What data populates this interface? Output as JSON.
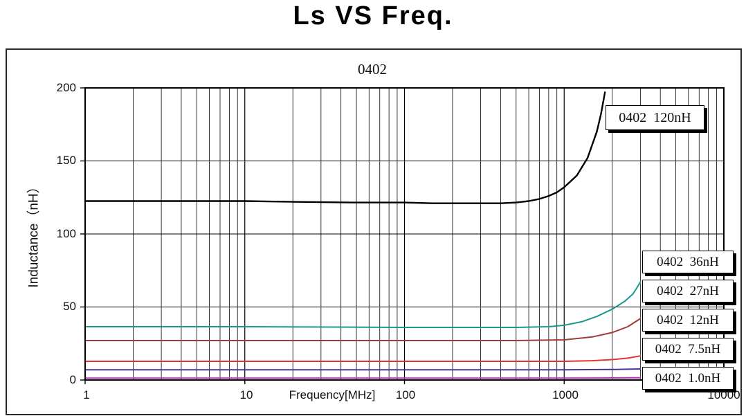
{
  "title": "Ls VS Freq.",
  "chart_data": {
    "type": "line",
    "title": "Ls VS Freq.",
    "subtitle": "0402",
    "xlabel": "Frequency[MHz]",
    "ylabel": "Inductance（nH）",
    "x_scale": "log",
    "xlim": [
      1,
      10000
    ],
    "ylim": [
      0,
      200
    ],
    "x_ticks": [
      1,
      10,
      100,
      1000,
      10000
    ],
    "y_ticks": [
      0,
      50,
      100,
      150,
      200
    ],
    "grid": true,
    "legend_position": "right",
    "series": [
      {
        "name": "0402 120nH",
        "color": "#000000",
        "width": 2.4,
        "points": [
          [
            1,
            122.5
          ],
          [
            2,
            122.5
          ],
          [
            5,
            122.5
          ],
          [
            10,
            122.5
          ],
          [
            20,
            122
          ],
          [
            50,
            121.5
          ],
          [
            100,
            121.5
          ],
          [
            150,
            121
          ],
          [
            200,
            121
          ],
          [
            300,
            121
          ],
          [
            400,
            121
          ],
          [
            500,
            121.5
          ],
          [
            600,
            122.5
          ],
          [
            700,
            124
          ],
          [
            800,
            126
          ],
          [
            900,
            128.5
          ],
          [
            1000,
            132
          ],
          [
            1200,
            140
          ],
          [
            1400,
            152
          ],
          [
            1600,
            170
          ],
          [
            1700,
            182
          ],
          [
            1800,
            197
          ]
        ]
      },
      {
        "name": "0402 36nH",
        "color": "#1a9890",
        "width": 2,
        "points": [
          [
            1,
            36.5
          ],
          [
            10,
            36.5
          ],
          [
            100,
            36
          ],
          [
            300,
            36
          ],
          [
            500,
            36
          ],
          [
            800,
            36.5
          ],
          [
            1000,
            37.5
          ],
          [
            1300,
            40
          ],
          [
            1600,
            43.5
          ],
          [
            2000,
            48.5
          ],
          [
            2400,
            54
          ],
          [
            2700,
            59
          ],
          [
            3000,
            67
          ]
        ]
      },
      {
        "name": "0402 27nH",
        "color": "#a03a36",
        "width": 2,
        "points": [
          [
            1,
            27
          ],
          [
            10,
            27
          ],
          [
            100,
            27
          ],
          [
            500,
            27
          ],
          [
            1000,
            27.5
          ],
          [
            1500,
            29.5
          ],
          [
            2000,
            32.5
          ],
          [
            2500,
            36.5
          ],
          [
            3000,
            42
          ]
        ]
      },
      {
        "name": "0402 12nH",
        "color": "#e63232",
        "width": 2,
        "points": [
          [
            1,
            12.8
          ],
          [
            10,
            12.8
          ],
          [
            100,
            12.8
          ],
          [
            1000,
            12.8
          ],
          [
            1500,
            13.2
          ],
          [
            2000,
            14
          ],
          [
            2500,
            15
          ],
          [
            3000,
            16.5
          ]
        ]
      },
      {
        "name": "0402 7.5nH",
        "color": "#4333a0",
        "width": 2,
        "points": [
          [
            1,
            7
          ],
          [
            10,
            7
          ],
          [
            100,
            7
          ],
          [
            1000,
            7
          ],
          [
            2000,
            7.2
          ],
          [
            3000,
            7.6
          ]
        ]
      },
      {
        "name": "0402 1.0nH",
        "color": "#c428c4",
        "width": 2,
        "points": [
          [
            1,
            1.3
          ],
          [
            10,
            1.3
          ],
          [
            100,
            1.3
          ],
          [
            1000,
            1.3
          ],
          [
            3000,
            1.5
          ]
        ]
      }
    ]
  },
  "legend": {
    "box_120": "0402  120nH",
    "stack": [
      "0402  36nH",
      "0402  27nH",
      "0402  12nH",
      "0402  7.5nH",
      "0402  1.0nH"
    ]
  }
}
